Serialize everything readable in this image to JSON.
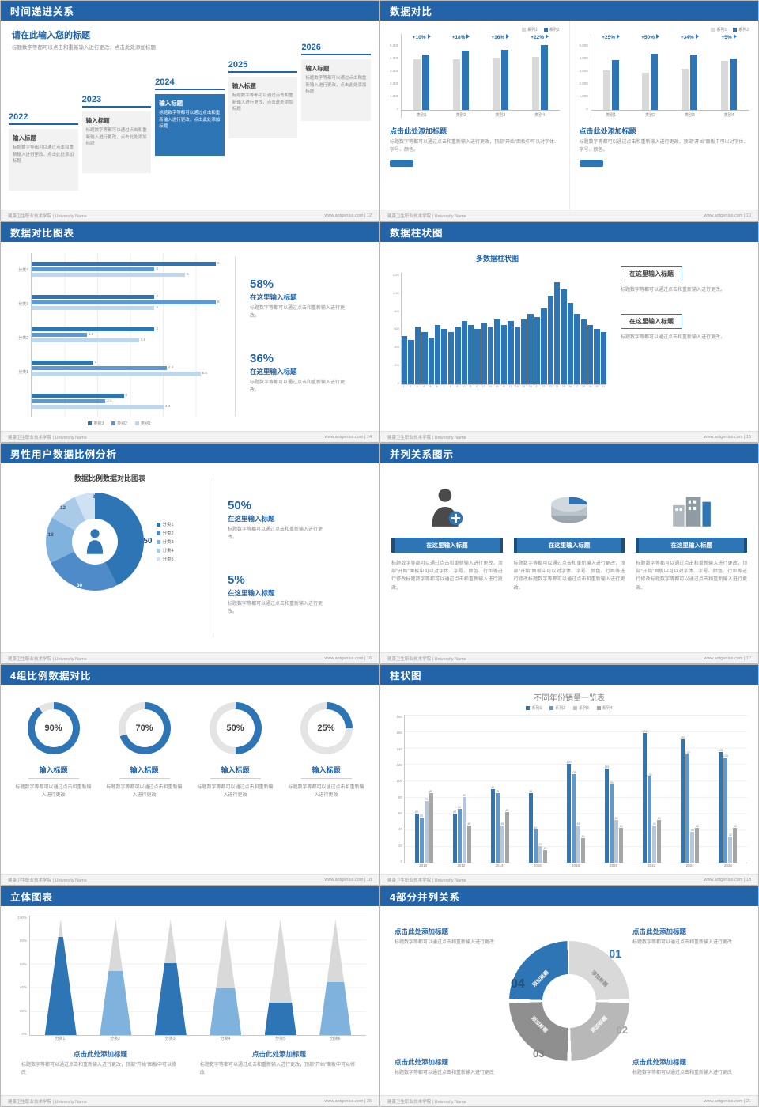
{
  "theme": {
    "header_blue": "#2264a7",
    "accent_blue": "#2e75b6",
    "mid_blue": "#5b9bd5",
    "light_blue": "#bdd7ee",
    "gray": "#d9d9d9"
  },
  "footer": {
    "school": "健康卫生职业技术学院 | University Name",
    "site": "www.aotgenius.com"
  },
  "slides": [
    {
      "title": "时间递进关系",
      "footer_right": "www.aotgenius.com | 12",
      "heading": "请在此输入您的标题",
      "heading_body": "标题数字等都可以点击和重新输入进行更改，点击此处添加标题",
      "steps": [
        {
          "year": "2022",
          "label": "输入标题",
          "body": "标题数字等都可以通过点击和重新输入进行更改，点击此处添加标题"
        },
        {
          "year": "2023",
          "label": "输入标题",
          "body": "标题数字等都可以通过点击和重新输入进行更改，点击此处添加标题"
        },
        {
          "year": "2024",
          "label": "输入标题",
          "body": "标题数字等都可以通过点击和重新输入进行更改，点击此处添加标题"
        },
        {
          "year": "2025",
          "label": "输入标题",
          "body": "标题数字等都可以通过点击和重新输入进行更改，点击此处添加标题"
        },
        {
          "year": "2026",
          "label": "输入标题",
          "body": "标题数字等都可以通过点击和重新输入进行更改，点击此处添加标题"
        }
      ]
    },
    {
      "title": "数据对比",
      "footer_right": "www.aotgenius.com | 13",
      "panels": [
        {
          "legend": [
            "系列1",
            "系列2"
          ],
          "colors": [
            "#d9d9d9",
            "#2e75b6"
          ],
          "categories": [
            "类别1",
            "类别2",
            "类别3",
            "类别4"
          ],
          "series1": [
            3800,
            3800,
            3900,
            4000
          ],
          "series2": [
            4180,
            4480,
            4520,
            4880
          ],
          "labels": [
            "+10%",
            "+18%",
            "+16%",
            "+22%"
          ],
          "ymax": 5000,
          "yticks": [
            "5,000",
            "4,000",
            "3,000",
            "2,000",
            "1,000",
            "0"
          ],
          "caption": "点击此处添加标题",
          "body": "标题数字等都可以通过点击和重新输入进行更改，顶部“开始”面板中可以对字体、字号、颜色。"
        },
        {
          "legend": [
            "系列1",
            "系列2"
          ],
          "colors": [
            "#d9d9d9",
            "#2e75b6"
          ],
          "categories": [
            "类别1",
            "类别2",
            "类别3",
            "类别4"
          ],
          "series1": [
            3000,
            2800,
            3100,
            3700
          ],
          "series2": [
            3750,
            4200,
            4150,
            3890
          ],
          "labels": [
            "+25%",
            "+50%",
            "+34%",
            "+5%"
          ],
          "ymax": 5000,
          "yticks": [
            "5,000",
            "4,000",
            "3,000",
            "2,000",
            "1,000",
            "0"
          ],
          "caption": "点击此处添加标题",
          "body": "标题数字等都可以通过点击和重新输入进行更改，顶部“开始”面板中可以对字体、字号、颜色。"
        }
      ]
    },
    {
      "title": "数据对比图表",
      "footer_right": "www.aotgenius.com | 14",
      "chart": {
        "xmax": 6,
        "colors": [
          "#2e75b6",
          "#5b9bd5",
          "#bdd7ee"
        ],
        "legend": [
          "类别3",
          "类别2",
          "类别1"
        ],
        "groups": [
          {
            "label": "分类4",
            "values": [
              6,
              4,
              5
            ]
          },
          {
            "label": "分类3",
            "values": [
              4,
              6,
              4
            ]
          },
          {
            "label": "分类2",
            "values": [
              4,
              1.8,
              3.5
            ]
          },
          {
            "label": "分类1",
            "values": [
              2,
              4.4,
              5.5
            ]
          },
          {
            "label": "",
            "values": [
              3,
              2.4,
              4.3
            ]
          }
        ]
      },
      "stats": [
        {
          "pct": "58%",
          "title": "在这里输入标题",
          "body": "标题数字等都可以通过点击和重新输入进行更改。"
        },
        {
          "pct": "36%",
          "title": "在这里输入标题",
          "body": "标题数字等都可以通过点击和重新输入进行更改。"
        }
      ]
    },
    {
      "title": "数据柱状图",
      "footer_right": "www.aotgenius.com | 15",
      "chart_title": "多数据柱状图",
      "chart": {
        "ymax": 1200,
        "yticks": [
          "1.2K",
          "1.0K",
          "800",
          "600",
          "400",
          "200",
          "0"
        ],
        "values": [
          520,
          480,
          620,
          560,
          500,
          640,
          600,
          560,
          620,
          680,
          640,
          600,
          660,
          620,
          700,
          640,
          680,
          620,
          700,
          760,
          720,
          820,
          950,
          1100,
          1020,
          880,
          760,
          700,
          640,
          600,
          560
        ]
      },
      "boxes": [
        {
          "title": "在这里输入标题",
          "body": "标题数字等都可以通过点击和重新输入进行更改。"
        },
        {
          "title": "在这里输入标题",
          "body": "标题数字等都可以通过点击和重新输入进行更改。"
        }
      ]
    },
    {
      "title": "男性用户数据比例分析",
      "footer_right": "www.aotgenius.com | 16",
      "chart_title": "数据比例数据对比图表",
      "chart": {
        "segments": [
          {
            "label": "分类1",
            "value": 50,
            "color": "#2e75b6"
          },
          {
            "label": "分类2",
            "value": 30,
            "color": "#4f8ac9"
          },
          {
            "label": "分类3",
            "value": 18,
            "color": "#7fb2dd"
          },
          {
            "label": "分类4",
            "value": 12,
            "color": "#a9cbe8"
          },
          {
            "label": "分类5",
            "value": 8,
            "color": "#cfe2f3"
          }
        ]
      },
      "value_labels": [
        "50",
        "30",
        "18",
        "12",
        "8"
      ],
      "stats": [
        {
          "pct": "50%",
          "title": "在这里输入标题",
          "body": "标题数字等都可以通过点击和重新输入进行更改。"
        },
        {
          "pct": "5%",
          "title": "在这里输入标题",
          "body": "标题数字等都可以通过点击和重新输入进行更改。"
        }
      ]
    },
    {
      "title": "并列关系图示",
      "footer_right": "www.aotgenius.com | 17",
      "items": [
        {
          "icon": "medical-person-icon",
          "button": "在这里输入标题",
          "body": "标题数字等都可以通过点击和重新输入进行更改，顶部“开始”面板中可以对字体、字号、颜色、行距等进行修改标题数字等都可以通过点击和重新输入进行更改。"
        },
        {
          "icon": "cylinder-chart-icon",
          "button": "在这里输入标题",
          "body": "标题数字等都可以通过点击和重新输入进行更改，顶部“开始”面板中可以对字体、字号、颜色、行距等进行修改标题数字等都可以通过点击和重新输入进行更改。"
        },
        {
          "icon": "building-icon",
          "button": "在这里输入标题",
          "body": "标题数字等都可以通过点击和重新输入进行更改，顶部“开始”面板中可以对字体、字号、颜色、行距等进行修改标题数字等都可以通过点击和重新输入进行更改。"
        }
      ]
    },
    {
      "title": "4组比例数据对比",
      "footer_right": "www.aotgenius.com | 18",
      "rings": [
        {
          "pct": 90,
          "text": "90%",
          "title": "输入标题",
          "body": "标题数字等都可以通过点击和重新输入进行更改"
        },
        {
          "pct": 70,
          "text": "70%",
          "title": "输入标题",
          "body": "标题数字等都可以通过点击和重新输入进行更改"
        },
        {
          "pct": 50,
          "text": "50%",
          "title": "输入标题",
          "body": "标题数字等都可以通过点击和重新输入进行更改"
        },
        {
          "pct": 25,
          "text": "25%",
          "title": "输入标题",
          "body": "标题数字等都可以通过点击和重新输入进行更改"
        }
      ]
    },
    {
      "title": "柱状图",
      "footer_right": "www.aotgenius.com | 19",
      "chart_title": "不同年份销量一览表",
      "chart": {
        "legend": [
          "系列1",
          "系列2",
          "系列3",
          "系列4"
        ],
        "colors": [
          "#2e75b6",
          "#5b9bd5",
          "#b4c7dc",
          "#a6a6a6"
        ],
        "categories": [
          "2010",
          "2012",
          "2014",
          "2016",
          "2018",
          "2020",
          "2022",
          "2024",
          "2026"
        ],
        "series": [
          {
            "name": "系列1",
            "values": [
              60,
              60,
              90,
              85,
              120,
              115,
              158,
              150,
              135
            ]
          },
          {
            "name": "系列2",
            "values": [
              55,
              65,
              85,
              40,
              108,
              95,
              105,
              132,
              128
            ]
          },
          {
            "name": "系列3",
            "values": [
              75,
              80,
              45,
              20,
              45,
              52,
              45,
              38,
              32
            ]
          },
          {
            "name": "系列4",
            "values": [
              85,
              45,
              62,
              15,
              30,
              42,
              52,
              42,
              42
            ]
          }
        ],
        "ymax": 180,
        "yticks": [
          "180",
          "160",
          "140",
          "120",
          "100",
          "80",
          "60",
          "40",
          "20",
          "0"
        ]
      }
    },
    {
      "title": "立体图表",
      "footer_right": "www.aotgenius.com | 20",
      "chart": {
        "categories": [
          "分类1",
          "分类2",
          "分类3",
          "分类4",
          "分类5",
          "分类6"
        ],
        "values": [
          85,
          55,
          62,
          40,
          28,
          46
        ],
        "colors": [
          "#2e75b6",
          "#7fb2dd"
        ],
        "yticks": [
          "100%",
          "80%",
          "60%",
          "40%",
          "20%",
          "0%"
        ]
      },
      "captions": [
        {
          "title": "点击此处添加标题",
          "body": "标题数字等都可以通过点击和重新输入进行更改，顶部“开始”图板中可以修改"
        },
        {
          "title": "点击此处添加标题",
          "body": "标题数字等都可以通过点击和重新输入进行更改，顶部“开始”面板中可以修改"
        }
      ]
    },
    {
      "title": "4部分并列关系",
      "footer_right": "www.aotgenius.com | 21",
      "segments": [
        {
          "num": "01",
          "label": "添加标题"
        },
        {
          "num": "02",
          "label": "添加标题"
        },
        {
          "num": "03",
          "label": "添加标题"
        },
        {
          "num": "04",
          "label": "添加标题"
        }
      ],
      "blocks": [
        {
          "title": "点击此处添加标题",
          "body": "标题数字等都可以通过点击和重新输入进行更改"
        },
        {
          "title": "点击此处添加标题",
          "body": "标题数字等都可以通过点击和重新输入进行更改"
        },
        {
          "title": "点击此处添加标题",
          "body": "标题数字等都可以通过点击和重新输入进行更改"
        },
        {
          "title": "点击此处添加标题",
          "body": "标题数字等都可以通过点击和重新输入进行更改"
        }
      ]
    }
  ]
}
